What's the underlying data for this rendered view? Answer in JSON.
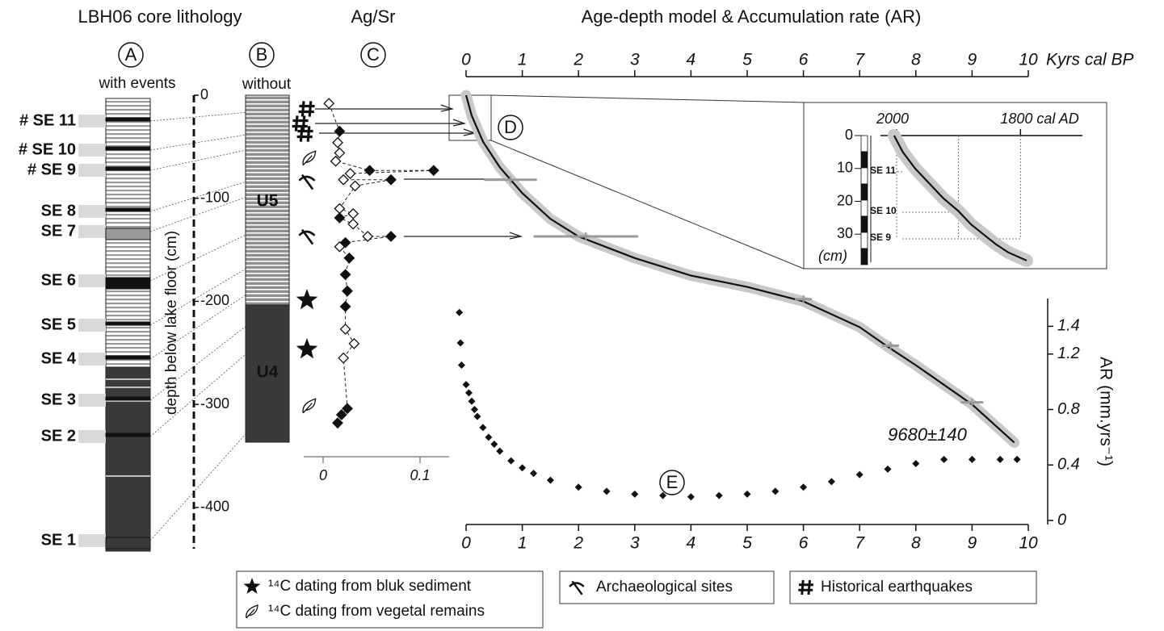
{
  "labels": {
    "lithology_title": "LBH06 core lithology",
    "panel_a": "A",
    "panel_a_caption": "with events",
    "panel_b": "B",
    "panel_b_caption": "without",
    "panel_c": "C",
    "panel_d": "D",
    "panel_e": "E"
  },
  "lithology": {
    "events": [
      "# SE 11",
      "# SE 10",
      "# SE 9",
      "SE 8",
      "SE 7",
      "SE 6",
      "SE 5",
      "SE 4",
      "SE 3",
      "SE 2",
      "SE 1"
    ],
    "units": [
      "U5",
      "U4"
    ]
  },
  "legend": {
    "bulk": "¹⁴C dating from bluk sediment",
    "vegetal": "¹⁴C dating from vegetal remains",
    "archaeological": "Archaeological sites",
    "earthquakes": "Historical earthquakes"
  },
  "chart_data": [
    {
      "type": "axis",
      "ylabel": "depth below lake floor (cm)",
      "ylim": [
        -440,
        0
      ],
      "yticks": [
        0,
        -100,
        -200,
        -300,
        -400
      ]
    },
    {
      "type": "profile",
      "title": "Ag/Sr",
      "depths": [
        -8,
        -35,
        -46,
        -56,
        -64,
        -73,
        -73,
        -76,
        -82,
        -82,
        -88,
        -110,
        -115,
        -119,
        -125,
        -137,
        -137,
        -143,
        -147,
        -158,
        -174,
        -190,
        -205,
        -227,
        -241,
        -255,
        -304,
        -310,
        -318
      ],
      "values": [
        0.006,
        0.017,
        0.015,
        0.017,
        0.013,
        0.048,
        0.114,
        0.028,
        0.021,
        0.07,
        0.033,
        0.017,
        0.031,
        0.017,
        0.031,
        0.046,
        0.07,
        0.023,
        0.017,
        0.027,
        0.023,
        0.025,
        0.023,
        0.023,
        0.032,
        0.021,
        0.025,
        0.019,
        0.015
      ],
      "filled": [
        false,
        true,
        false,
        false,
        false,
        true,
        true,
        false,
        false,
        true,
        false,
        false,
        false,
        true,
        false,
        false,
        true,
        true,
        false,
        true,
        true,
        true,
        true,
        false,
        false,
        false,
        true,
        true,
        true
      ],
      "xlim": [
        -0.02,
        0.13
      ],
      "xticks": [
        0,
        0.1
      ],
      "ylim": [
        -440,
        0
      ]
    },
    {
      "type": "line",
      "title": "Age-depth model & Accumulation rate (AR)",
      "xlabel": "Kyrs cal BP",
      "x": [
        0,
        0.1,
        0.3,
        0.6,
        1,
        1.5,
        2,
        3,
        4,
        5,
        6,
        7,
        7.5,
        8,
        9,
        9.75
      ],
      "values": [
        0,
        -20,
        -45,
        -70,
        -95,
        -120,
        -137,
        -158,
        -175,
        -186,
        -200,
        -225,
        -244,
        -262,
        -300,
        -337
      ],
      "xlim": [
        0,
        10
      ],
      "xticks": [
        0,
        1,
        2,
        3,
        4,
        5,
        6,
        7,
        8,
        9,
        10
      ],
      "ylim": [
        -440,
        0
      ],
      "dates": {
        "x": [
          0.79,
          2.13,
          6.0,
          7.55,
          9.0
        ],
        "values": [
          -82,
          -137,
          -198,
          -243,
          -298
        ],
        "errors": [
          0.47,
          0.93,
          0.15,
          0.15,
          0.2
        ]
      },
      "annotation": "9680±140"
    },
    {
      "type": "scatter",
      "ylabel": "AR (mm.yrs⁻¹)",
      "x": [
        -0.12,
        -0.1,
        -0.08,
        0,
        0.05,
        0.1,
        0.15,
        0.2,
        0.3,
        0.4,
        0.5,
        0.6,
        0.8,
        1,
        1.2,
        1.5,
        2,
        2.5,
        3,
        3.5,
        4,
        4.5,
        5,
        5.5,
        6,
        6.5,
        7,
        7.5,
        8,
        8.5,
        9,
        9.5,
        9.8
      ],
      "values": [
        1.5,
        1.28,
        1.12,
        0.98,
        0.92,
        0.86,
        0.8,
        0.75,
        0.67,
        0.6,
        0.55,
        0.5,
        0.43,
        0.38,
        0.34,
        0.29,
        0.24,
        0.21,
        0.19,
        0.18,
        0.17,
        0.18,
        0.19,
        0.21,
        0.24,
        0.28,
        0.33,
        0.37,
        0.41,
        0.44,
        0.44,
        0.44,
        0.44
      ],
      "xlim": [
        0,
        10
      ],
      "xticks": [
        0,
        1,
        2,
        3,
        4,
        5,
        6,
        7,
        8,
        9,
        10
      ],
      "ylim": [
        0,
        1.6
      ],
      "yticks": [
        0,
        0.4,
        0.8,
        1.2,
        1.4
      ]
    },
    {
      "type": "line",
      "ylabel": "(cm)",
      "x": [
        2004,
        1990,
        1970,
        1950,
        1925,
        1900,
        1880,
        1860,
        1840,
        1820,
        1790
      ],
      "values": [
        0,
        5,
        10,
        14,
        19,
        23,
        27,
        30,
        33,
        35.5,
        38
      ],
      "xlim": [
        2026,
        1700
      ],
      "xticks": [
        2000,
        {
          "value": 1800,
          "label": "1800 cal AD"
        }
      ],
      "xgrid": [
        2000,
        1900,
        1800
      ],
      "ylim": [
        40,
        0
      ],
      "yticks": [
        0,
        10,
        20,
        30
      ],
      "events": [
        "SE 11",
        "SE 10",
        "SE 9"
      ],
      "event_depths": [
        11,
        23.3,
        31.4
      ]
    }
  ]
}
